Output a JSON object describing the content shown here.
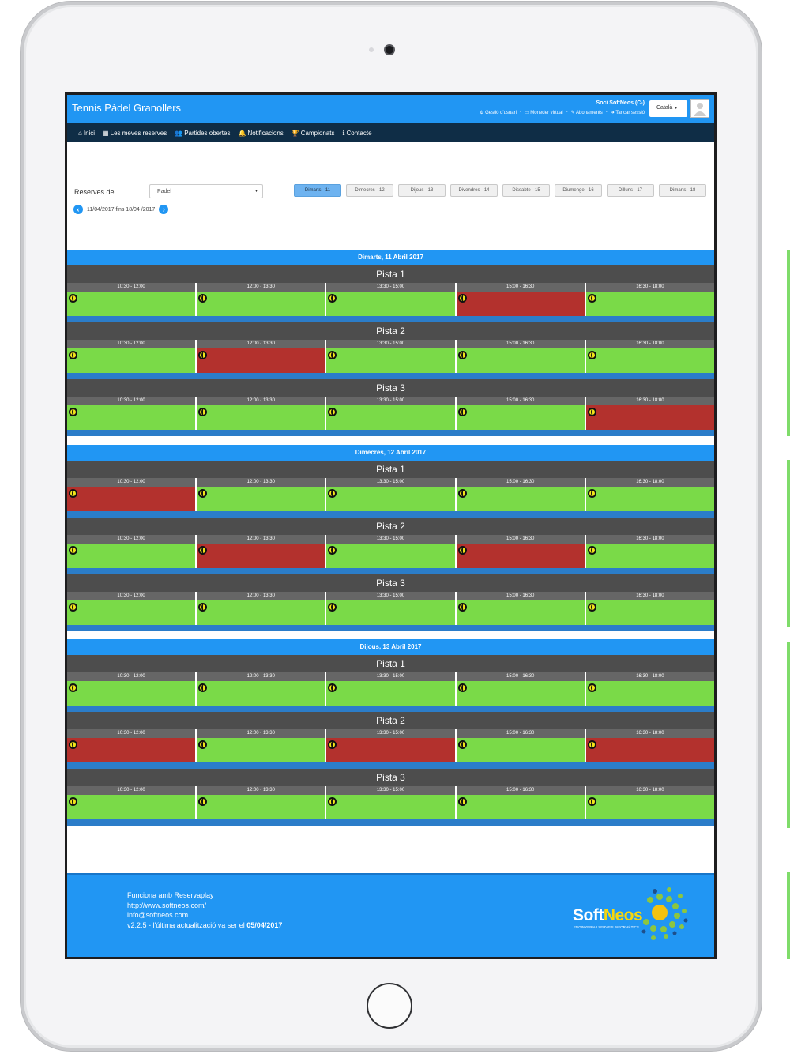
{
  "app": {
    "title": "Tennis Pàdel Granollers"
  },
  "user": {
    "name": "Soci SoftNeos (C-)",
    "links": [
      {
        "icon": "gear-icon",
        "label": "Gestió d'usuari"
      },
      {
        "icon": "credit-card-icon",
        "label": "Moneder virtual"
      },
      {
        "icon": "edit-icon",
        "label": "Abonaments"
      },
      {
        "icon": "logout-icon",
        "label": "Tancar sessió"
      }
    ],
    "language": "Català"
  },
  "nav": [
    {
      "icon": "home-icon",
      "glyph": "⌂",
      "label": "Inici"
    },
    {
      "icon": "calendar-icon",
      "glyph": "▦",
      "label": "Les meves reserves"
    },
    {
      "icon": "users-icon",
      "glyph": "👥",
      "label": "Partides obertes"
    },
    {
      "icon": "bell-icon",
      "glyph": "🔔",
      "label": "Notificacions"
    },
    {
      "icon": "trophy-icon",
      "glyph": "🏆",
      "label": "Campionats"
    },
    {
      "icon": "info-icon",
      "glyph": "ℹ",
      "label": "Contacte"
    }
  ],
  "filters": {
    "label": "Reserves de",
    "selected_sport": "Padel",
    "date_range": "11/04/2017 fins 18/04 /2017",
    "day_tabs": [
      {
        "label": "Dimarts - 11",
        "active": true
      },
      {
        "label": "Dimecres - 12",
        "active": false
      },
      {
        "label": "Dijous - 13",
        "active": false
      },
      {
        "label": "Divendres - 14",
        "active": false
      },
      {
        "label": "Dissabte - 15",
        "active": false
      },
      {
        "label": "Diumenge - 16",
        "active": false
      },
      {
        "label": "Dilluns - 17",
        "active": false
      },
      {
        "label": "Dimarts - 18",
        "active": false
      }
    ]
  },
  "schedule": [
    {
      "day": "Dimarts, 11 Abril 2017",
      "courts": [
        {
          "name": "Pista 1",
          "slots": [
            {
              "time": "10:30 - 12:00",
              "status": "free"
            },
            {
              "time": "12:00 - 13:30",
              "status": "free"
            },
            {
              "time": "13:30 - 15:00",
              "status": "free"
            },
            {
              "time": "15:00 - 16:30",
              "status": "busy"
            },
            {
              "time": "16:30 - 18:00",
              "status": "free"
            }
          ]
        },
        {
          "name": "Pista 2",
          "slots": [
            {
              "time": "10:30 - 12:00",
              "status": "free"
            },
            {
              "time": "12:00 - 13:30",
              "status": "busy"
            },
            {
              "time": "13:30 - 15:00",
              "status": "free"
            },
            {
              "time": "15:00 - 16:30",
              "status": "free"
            },
            {
              "time": "16:30 - 18:00",
              "status": "free"
            }
          ]
        },
        {
          "name": "Pista 3",
          "slots": [
            {
              "time": "10:30 - 12:00",
              "status": "free"
            },
            {
              "time": "12:00 - 13:30",
              "status": "free"
            },
            {
              "time": "13:30 - 15:00",
              "status": "free"
            },
            {
              "time": "15:00 - 16:30",
              "status": "free"
            },
            {
              "time": "16:30 - 18:00",
              "status": "busy"
            }
          ]
        }
      ]
    },
    {
      "day": "Dimecres, 12 Abril 2017",
      "courts": [
        {
          "name": "Pista 1",
          "slots": [
            {
              "time": "10:30 - 12:00",
              "status": "busy"
            },
            {
              "time": "12:00 - 13:30",
              "status": "free"
            },
            {
              "time": "13:30 - 15:00",
              "status": "free"
            },
            {
              "time": "15:00 - 16:30",
              "status": "free"
            },
            {
              "time": "16:30 - 18:00",
              "status": "free"
            }
          ]
        },
        {
          "name": "Pista 2",
          "slots": [
            {
              "time": "10:30 - 12:00",
              "status": "free"
            },
            {
              "time": "12:00 - 13:30",
              "status": "busy"
            },
            {
              "time": "13:30 - 15:00",
              "status": "free"
            },
            {
              "time": "15:00 - 16:30",
              "status": "busy"
            },
            {
              "time": "16:30 - 18:00",
              "status": "free"
            }
          ]
        },
        {
          "name": "Pista 3",
          "slots": [
            {
              "time": "10:30 - 12:00",
              "status": "free"
            },
            {
              "time": "12:00 - 13:30",
              "status": "free"
            },
            {
              "time": "13:30 - 15:00",
              "status": "free"
            },
            {
              "time": "15:00 - 16:30",
              "status": "free"
            },
            {
              "time": "16:30 - 18:00",
              "status": "free"
            }
          ]
        }
      ]
    },
    {
      "day": "Dijous, 13 Abril 2017",
      "courts": [
        {
          "name": "Pista 1",
          "slots": [
            {
              "time": "10:30 - 12:00",
              "status": "free"
            },
            {
              "time": "12:00 - 13:30",
              "status": "free"
            },
            {
              "time": "13:30 - 15:00",
              "status": "free"
            },
            {
              "time": "15:00 - 16:30",
              "status": "free"
            },
            {
              "time": "16:30 - 18:00",
              "status": "free"
            }
          ]
        },
        {
          "name": "Pista 2",
          "slots": [
            {
              "time": "10:30 - 12:00",
              "status": "busy"
            },
            {
              "time": "12:00 - 13:30",
              "status": "free"
            },
            {
              "time": "13:30 - 15:00",
              "status": "busy"
            },
            {
              "time": "15:00 - 16:30",
              "status": "free"
            },
            {
              "time": "16:30 - 18:00",
              "status": "busy"
            }
          ]
        },
        {
          "name": "Pista 3",
          "slots": [
            {
              "time": "10:30 - 12:00",
              "status": "free"
            },
            {
              "time": "12:00 - 13:30",
              "status": "free"
            },
            {
              "time": "13:30 - 15:00",
              "status": "free"
            },
            {
              "time": "15:00 - 16:30",
              "status": "free"
            },
            {
              "time": "16:30 - 18:00",
              "status": "free"
            }
          ]
        }
      ]
    }
  ],
  "footer": {
    "line1": "Funciona amb Reservaplay",
    "line2": "http://www.softneos.com/",
    "line3": "info@softneos.com",
    "line4_prefix": "v2.2.5 - l'última actualització va ser el",
    "line4_date": "05/04/2017",
    "logo_soft": "Soft",
    "logo_neos": "Neos",
    "logo_tagline": "ENGINYERIA I SERVEIS INFORMÀTICS"
  },
  "colors": {
    "primary": "#2196f3",
    "nav": "#0f2d46",
    "free": "#7ada48",
    "busy": "#b3312d"
  }
}
